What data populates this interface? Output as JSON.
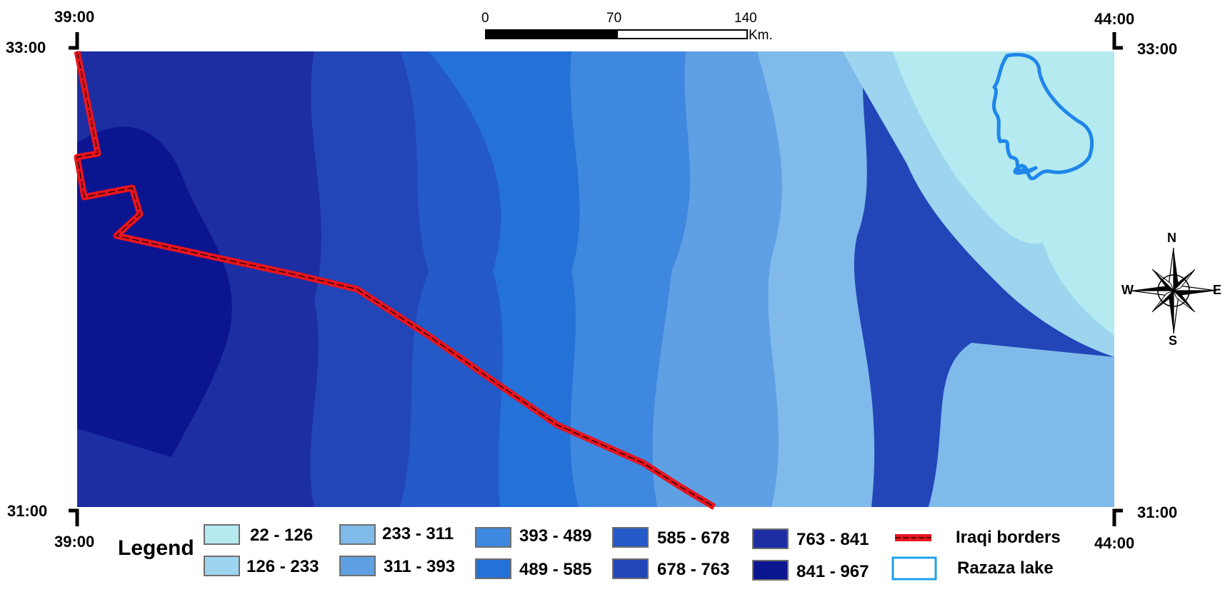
{
  "coords": {
    "top_left_lon": "39:00",
    "top_left_lat": "33:00",
    "top_right_lon": "44:00",
    "top_right_lat": "33:00",
    "bottom_left_lat": "31:00",
    "bottom_left_lon": "39:00",
    "bottom_right_lat": "31:00",
    "bottom_right_lon": "44:00"
  },
  "scale_bar": {
    "labels": [
      "0",
      "70",
      "140"
    ],
    "unit": "Km."
  },
  "compass": {
    "n": "N",
    "s": "S",
    "e": "E",
    "w": "W"
  },
  "legend": {
    "title": "Legend",
    "classes": [
      {
        "label": "22 - 126",
        "color": "#b4eaf0"
      },
      {
        "label": "126 - 233",
        "color": "#9dd4ee"
      },
      {
        "label": "233 - 311",
        "color": "#7fbaea"
      },
      {
        "label": "311 - 393",
        "color": "#5fa0e4"
      },
      {
        "label": "393 - 489",
        "color": "#3f88e0"
      },
      {
        "label": "489 - 585",
        "color": "#2471d8"
      },
      {
        "label": "585 - 678",
        "color": "#2459c8"
      },
      {
        "label": "678 - 763",
        "color": "#2246b8"
      },
      {
        "label": "763 - 841",
        "color": "#1c2ea2"
      },
      {
        "label": "841 - 967",
        "color": "#0c1590"
      }
    ],
    "borders_label": "Iraqi borders",
    "lake_label": "Razaza lake",
    "border_color": "#e8141e",
    "lake_color": "#1fa0ea"
  }
}
